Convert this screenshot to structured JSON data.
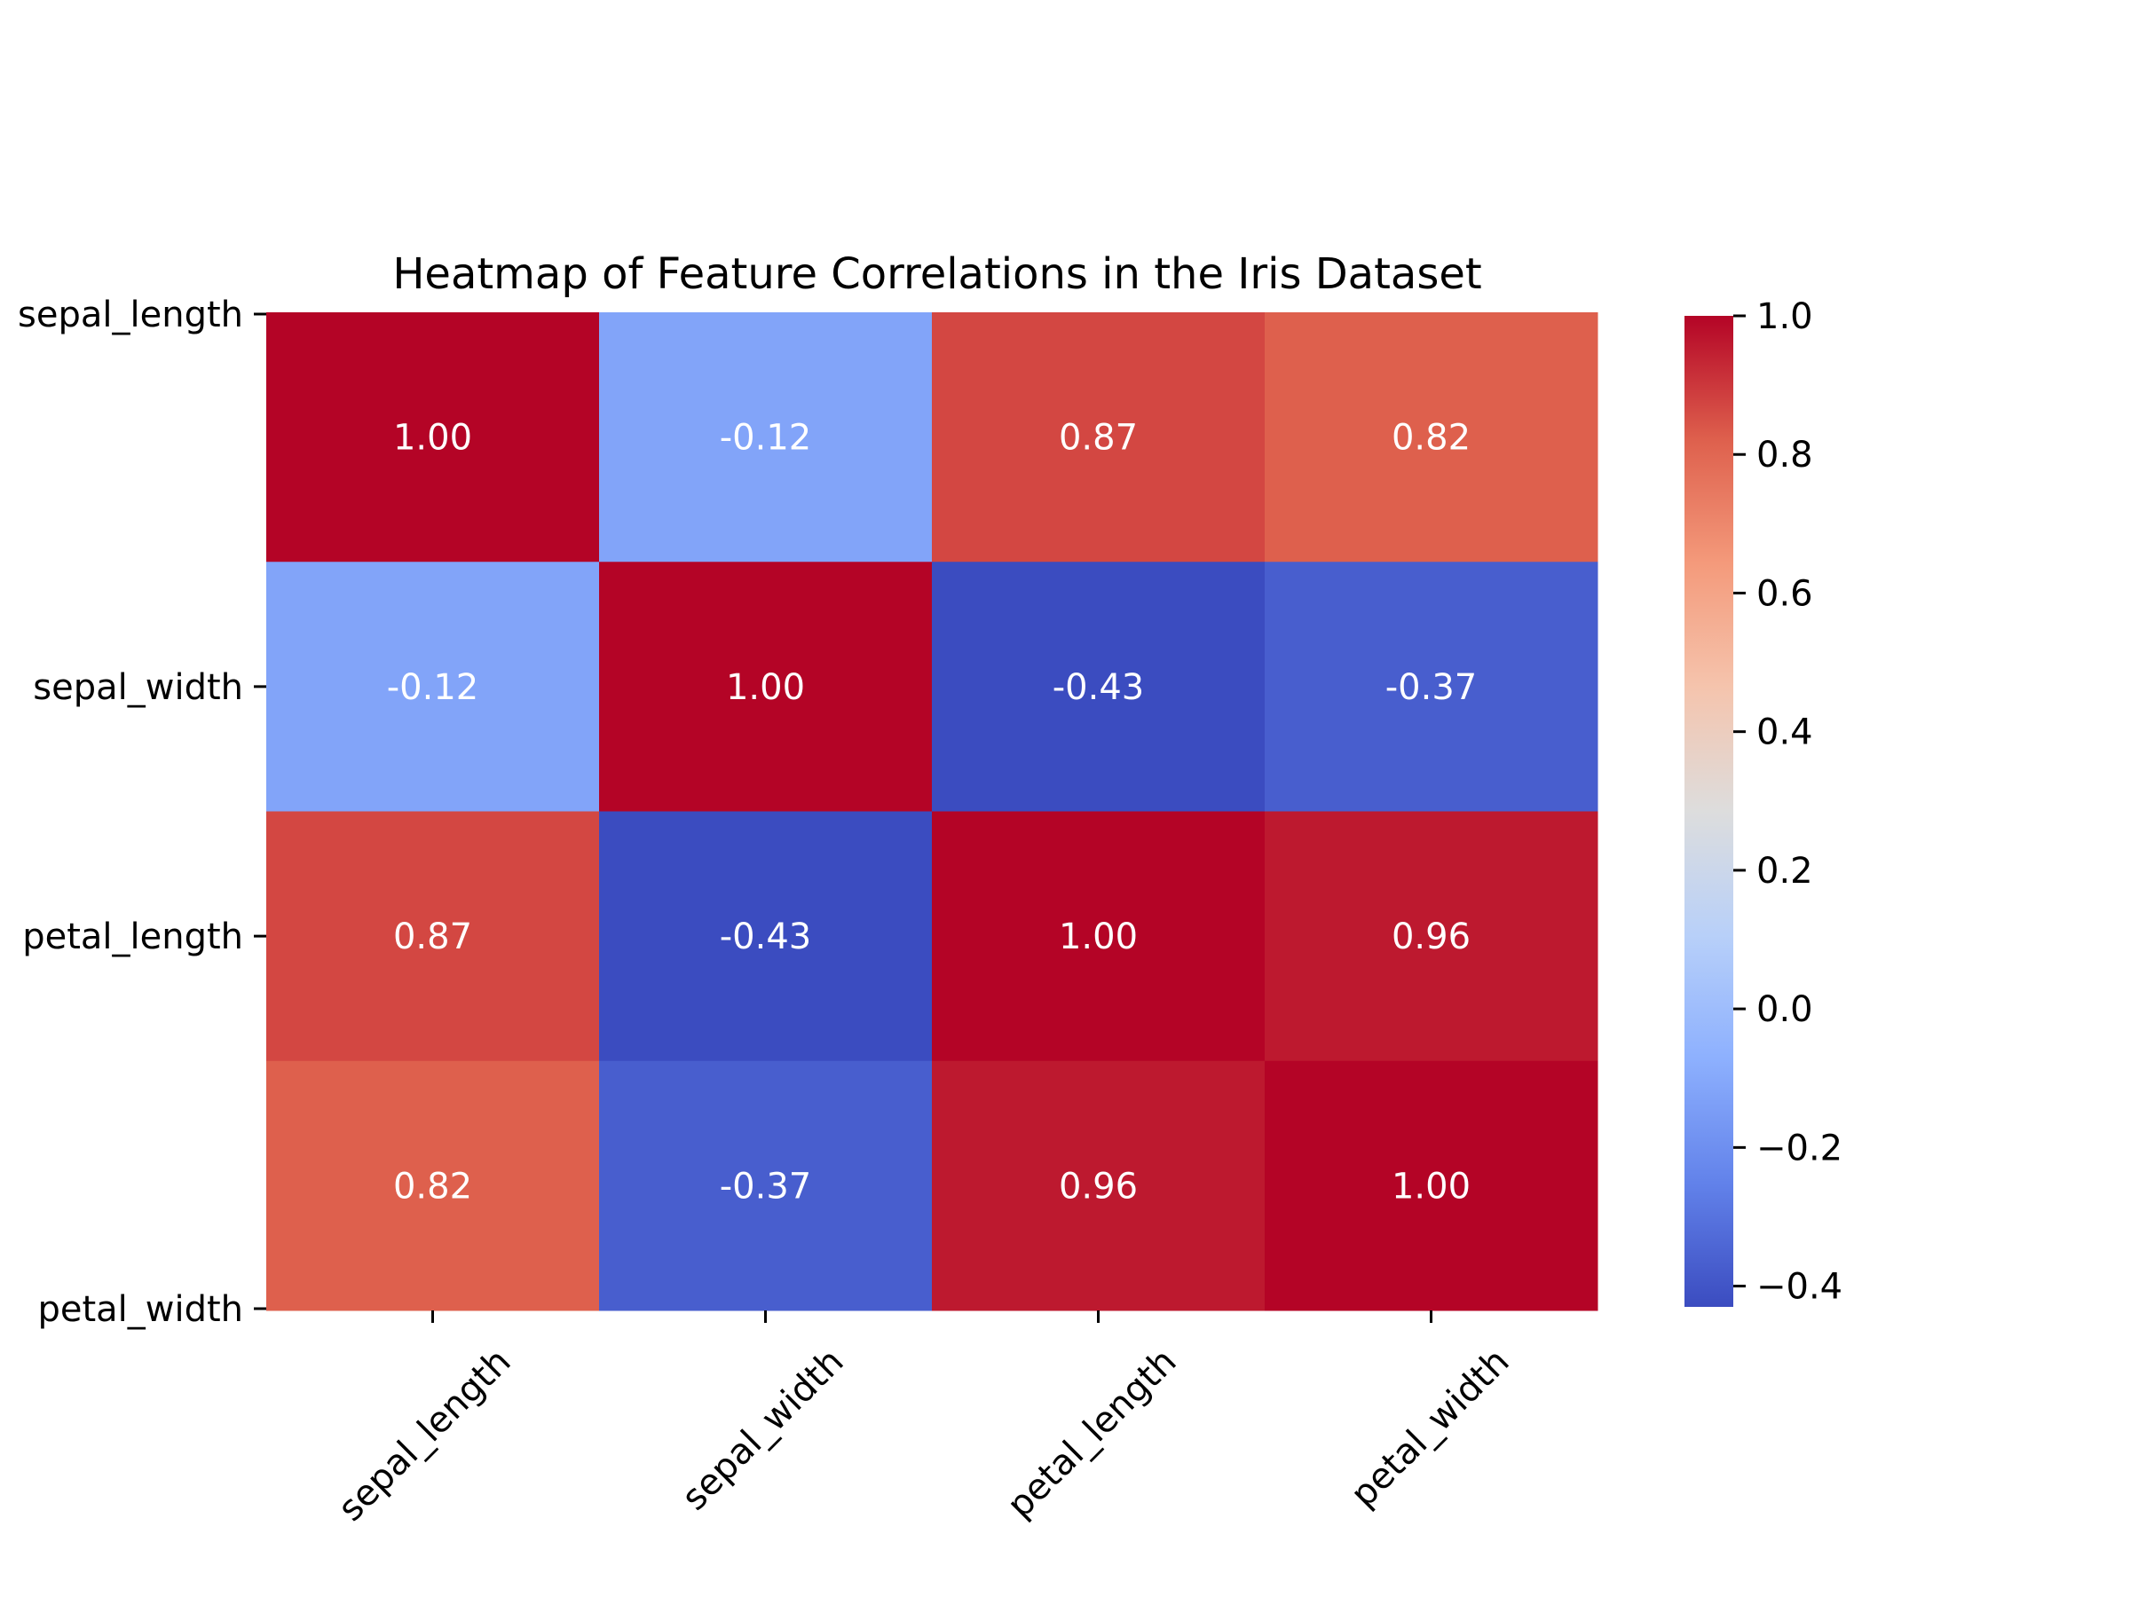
{
  "chart_data": {
    "type": "heatmap",
    "title": "Heatmap of Feature Correlations in the Iris Dataset",
    "xlabel": "",
    "ylabel": "",
    "rows": [
      "sepal_length",
      "sepal_width",
      "petal_length",
      "petal_width"
    ],
    "columns": [
      "sepal_length",
      "sepal_width",
      "petal_length",
      "petal_width"
    ],
    "values": [
      [
        1.0,
        -0.12,
        0.87,
        0.82
      ],
      [
        -0.12,
        1.0,
        -0.43,
        -0.37
      ],
      [
        0.87,
        -0.43,
        1.0,
        0.96
      ],
      [
        0.82,
        -0.37,
        0.96,
        1.0
      ]
    ],
    "value_labels": [
      [
        "1.00",
        "-0.12",
        "0.87",
        "0.82"
      ],
      [
        "-0.12",
        "1.00",
        "-0.43",
        "-0.37"
      ],
      [
        "0.87",
        "-0.43",
        "1.00",
        "0.96"
      ],
      [
        "0.82",
        "-0.37",
        "0.96",
        "1.00"
      ]
    ],
    "colormap": "coolwarm",
    "vmin": -0.43,
    "vmax": 1.0,
    "colorbar_ticks": [
      1.0,
      0.8,
      0.6,
      0.4,
      0.2,
      0.0,
      -0.2,
      -0.4
    ],
    "colorbar_tick_labels": [
      "1.0",
      "0.8",
      "0.6",
      "0.4",
      "0.2",
      "0.0",
      "−0.2",
      "−0.4"
    ],
    "x_tick_rotation": "45 degrees",
    "grid": false,
    "legend": "colorbar-right"
  }
}
